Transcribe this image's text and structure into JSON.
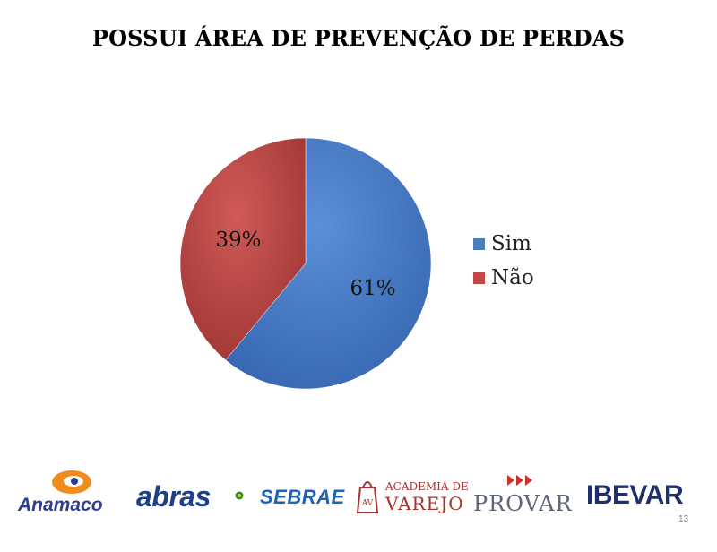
{
  "page": {
    "number": "13"
  },
  "chart_data": {
    "type": "pie",
    "title": "POSSUI ÁREA DE PREVENÇÃO DE PERDAS",
    "slices": [
      {
        "label": "Sim",
        "value": 61,
        "display": "61%",
        "color": "#4a7ebb"
      },
      {
        "label": "Não",
        "value": 39,
        "display": "39%",
        "color": "#be4b48"
      }
    ],
    "legend_position": "right"
  },
  "logos": [
    {
      "name": "Anamaco",
      "text": "Anamaco"
    },
    {
      "name": "abras",
      "text": "abras"
    },
    {
      "name": "SEBRAE",
      "text": "SEBRAE"
    },
    {
      "name": "Academia de Varejo",
      "text_top": "ACADEMIA DE",
      "text_bottom": "VAREJO",
      "mark": "AV"
    },
    {
      "name": "PROVAR",
      "text": "PROVAR"
    },
    {
      "name": "IBEVAR",
      "text": "IBEVAR"
    }
  ]
}
